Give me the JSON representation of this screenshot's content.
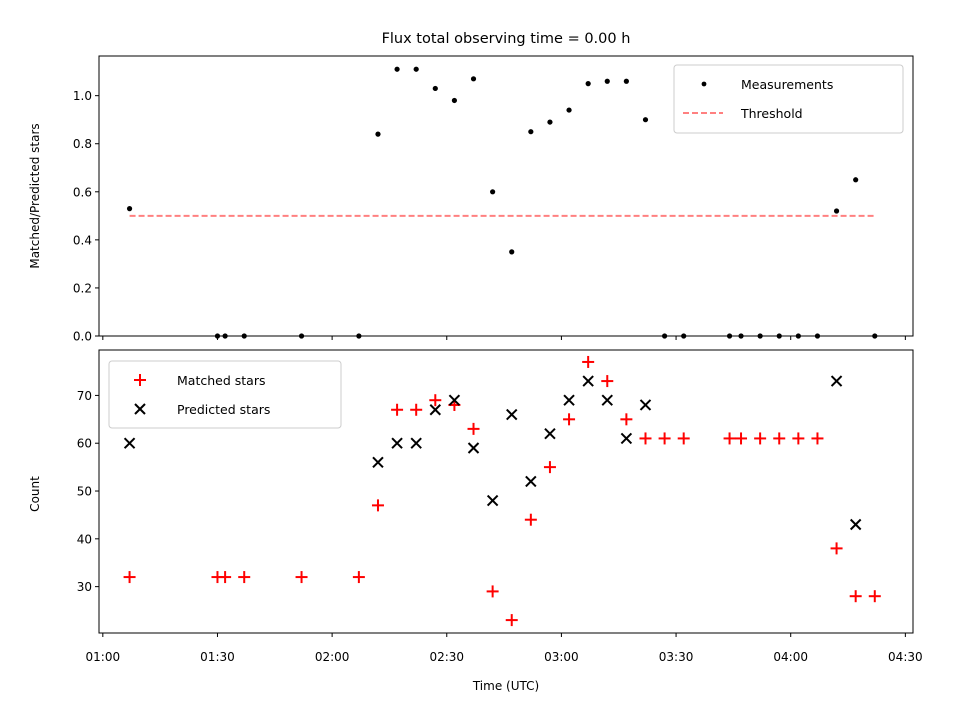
{
  "chart_data": [
    {
      "type": "scatter",
      "panel": "top",
      "title": "Flux total observing time = 0.00 h",
      "xlabel": "",
      "ylabel": "Matched/Predicted stars",
      "ylim": [
        0,
        1.165
      ],
      "yticks": [
        0.0,
        0.2,
        0.4,
        0.6,
        0.8,
        1.0
      ],
      "ytick_labels": [
        "0.0",
        "0.2",
        "0.4",
        "0.6",
        "0.8",
        "1.0"
      ],
      "xlim": [
        "00:59",
        "04:32"
      ],
      "legend_position": "top-right",
      "series": [
        {
          "name": "Measurements",
          "marker": "dot",
          "color": "#000000",
          "x": [
            "01:07",
            "01:30",
            "01:32",
            "01:37",
            "01:52",
            "02:07",
            "02:12",
            "02:17",
            "02:22",
            "02:27",
            "02:32",
            "02:37",
            "02:42",
            "02:47",
            "02:52",
            "02:57",
            "03:02",
            "03:07",
            "03:12",
            "03:17",
            "03:22",
            "03:27",
            "03:32",
            "03:44",
            "03:47",
            "03:52",
            "03:57",
            "04:02",
            "04:07",
            "04:12",
            "04:17",
            "04:22"
          ],
          "y": [
            0.53,
            0.0,
            0.0,
            0.0,
            0.0,
            0.0,
            0.84,
            1.11,
            1.11,
            1.03,
            0.98,
            1.07,
            0.6,
            0.35,
            0.85,
            0.89,
            0.94,
            1.05,
            1.06,
            1.06,
            0.9,
            0.0,
            0.0,
            0.0,
            0.0,
            0.0,
            0.0,
            0.0,
            0.0,
            0.52,
            0.65,
            0.0
          ]
        },
        {
          "name": "Threshold",
          "style": "dashed",
          "color": "#ff8080",
          "x": [
            "01:07",
            "04:22"
          ],
          "y": [
            0.5,
            0.5
          ]
        }
      ]
    },
    {
      "type": "scatter",
      "panel": "bottom",
      "title": "",
      "xlabel": "Time (UTC)",
      "ylabel": "Count",
      "ylim": [
        20.3,
        79.5
      ],
      "yticks": [
        30,
        40,
        50,
        60,
        70
      ],
      "ytick_labels": [
        "30",
        "40",
        "50",
        "60",
        "70"
      ],
      "xlim": [
        "00:59",
        "04:32"
      ],
      "xticks": [
        "01:00",
        "01:30",
        "02:00",
        "02:30",
        "03:00",
        "03:30",
        "04:00",
        "04:30"
      ],
      "legend_position": "top-left",
      "series": [
        {
          "name": "Matched stars",
          "marker": "plus",
          "color": "#ff0000",
          "x": [
            "01:07",
            "01:30",
            "01:32",
            "01:37",
            "01:52",
            "02:07",
            "02:12",
            "02:17",
            "02:22",
            "02:27",
            "02:32",
            "02:37",
            "02:42",
            "02:47",
            "02:52",
            "02:57",
            "03:02",
            "03:07",
            "03:12",
            "03:17",
            "03:22",
            "03:27",
            "03:32",
            "03:44",
            "03:47",
            "03:52",
            "03:57",
            "04:02",
            "04:07",
            "04:12",
            "04:17",
            "04:22"
          ],
          "y": [
            32,
            32,
            32,
            32,
            32,
            32,
            47,
            67,
            67,
            69,
            68,
            63,
            29,
            23,
            44,
            55,
            65,
            77,
            73,
            65,
            61,
            61,
            61,
            61,
            61,
            61,
            61,
            61,
            61,
            38,
            28,
            28
          ]
        },
        {
          "name": "Predicted stars",
          "marker": "x",
          "color": "#000000",
          "x": [
            "01:07",
            "02:12",
            "02:17",
            "02:22",
            "02:27",
            "02:32",
            "02:37",
            "02:42",
            "02:47",
            "02:52",
            "02:57",
            "03:02",
            "03:07",
            "03:12",
            "03:17",
            "03:22",
            "04:12",
            "04:17"
          ],
          "y": [
            60,
            56,
            60,
            60,
            67,
            69,
            59,
            48,
            66,
            52,
            62,
            69,
            73,
            69,
            61,
            68,
            73,
            43
          ]
        }
      ]
    }
  ]
}
